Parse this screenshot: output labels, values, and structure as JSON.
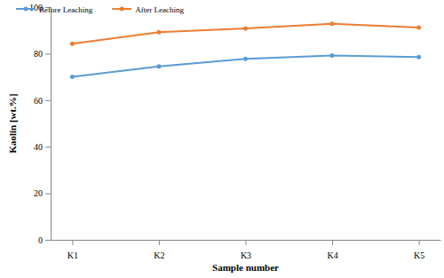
{
  "chart_data": {
    "type": "line",
    "x_label": "Sample number",
    "y_label": "Kaolin [wt.%]",
    "categories": [
      "K1",
      "K2",
      "K3",
      "K4",
      "K5"
    ],
    "series": [
      {
        "name": "Before Leaching",
        "color": "#5b9bd5",
        "marker": "circle",
        "line_style": "solid",
        "values": [
          70,
          74.5,
          77.8,
          79.2,
          78.5
        ]
      },
      {
        "name": "After Leaching",
        "color": "#ed7d31",
        "marker": "circle",
        "line_style": "solid",
        "values": [
          84.3,
          89.2,
          90.8,
          92.8,
          91.2
        ]
      }
    ],
    "ylim": [
      0,
      100
    ],
    "yticks": [
      0,
      20,
      40,
      60,
      80,
      100
    ],
    "grid": false,
    "legend": "upper left"
  }
}
